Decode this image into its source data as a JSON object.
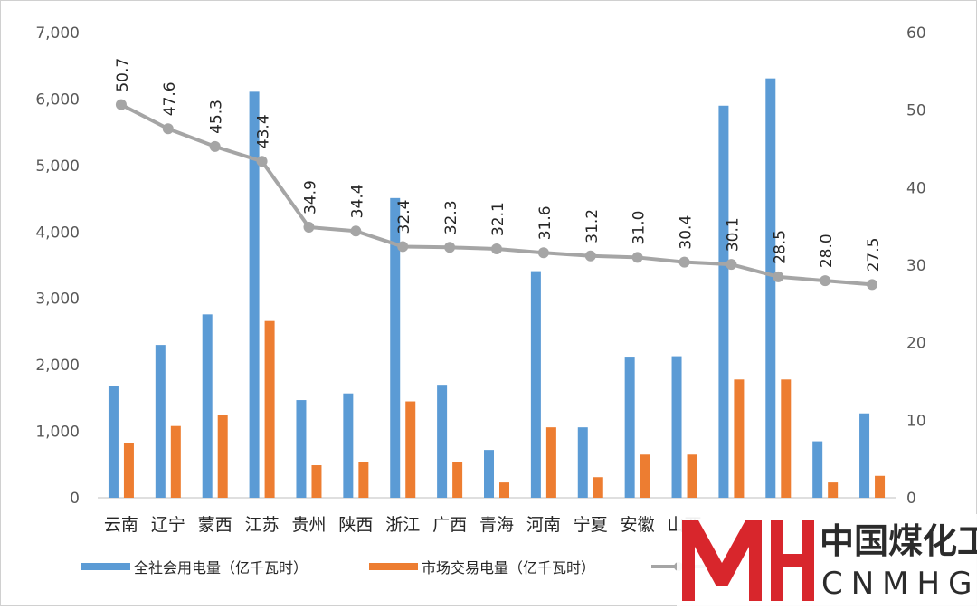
{
  "chart_data": {
    "type": "bar-line-combo",
    "categories": [
      "云南",
      "辽宁",
      "蒙西",
      "江苏",
      "贵州",
      "陕西",
      "浙江",
      "广西",
      "青海",
      "河南",
      "宁夏",
      "安徽",
      "山西",
      "",
      "",
      "",
      ""
    ],
    "series": [
      {
        "name": "全社会用电量（亿千瓦时）",
        "type": "bar",
        "axis": "left",
        "color": "#5b9bd5",
        "values": [
          1680,
          2300,
          2760,
          6110,
          1470,
          1570,
          4510,
          1700,
          720,
          3410,
          1060,
          2110,
          2130,
          5900,
          6310,
          850,
          1270
        ]
      },
      {
        "name": "市场交易电量（亿千瓦时）",
        "type": "bar",
        "axis": "left",
        "color": "#ed7d31",
        "values": [
          820,
          1080,
          1240,
          2660,
          490,
          540,
          1450,
          540,
          230,
          1060,
          310,
          650,
          650,
          1780,
          1780,
          230,
          330
        ]
      },
      {
        "name": "",
        "type": "line",
        "axis": "right",
        "color": "#a5a5a5",
        "values": [
          50.7,
          47.6,
          45.3,
          43.4,
          34.9,
          34.4,
          32.4,
          32.3,
          32.1,
          31.6,
          31.2,
          31.0,
          30.4,
          30.1,
          28.5,
          28.0,
          27.5
        ],
        "labels": [
          "50.7",
          "47.6",
          "45.3",
          "43.4",
          "34.9",
          "34.4",
          "32.4",
          "32.3",
          "32.1",
          "31.6",
          "31.2",
          "31.0",
          "30.4",
          "30.1",
          "28.5",
          "28.0",
          "27.5"
        ]
      }
    ],
    "left_axis": {
      "min": 0,
      "max": 7000,
      "ticks": [
        "0",
        "1,000",
        "2,000",
        "3,000",
        "4,000",
        "5,000",
        "6,000",
        "7,000"
      ]
    },
    "right_axis": {
      "min": 0,
      "max": 60,
      "ticks": [
        "0",
        "10",
        "20",
        "30",
        "40",
        "50",
        "60"
      ]
    },
    "grid": false,
    "legend_position": "bottom"
  },
  "watermark": {
    "brand_cn": "中国煤化工",
    "brand_en": "CNMHG",
    "logo_color": "#d8262c"
  }
}
